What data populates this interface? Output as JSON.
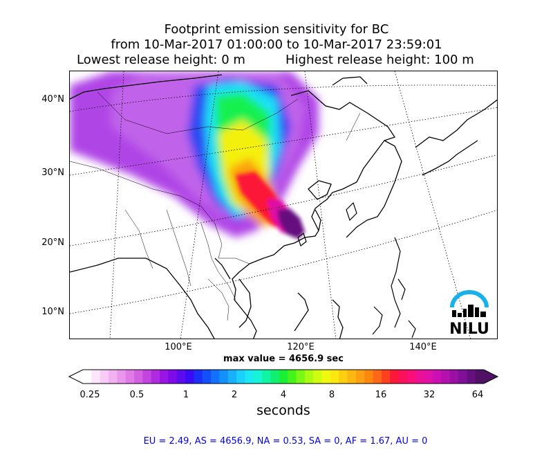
{
  "title": {
    "line1": "Footprint emission sensitivity for BC",
    "line2": "from 10-Mar-2017 01:00:00 to 10-Mar-2017 23:59:01",
    "lowest": "Lowest release height: 0 m",
    "highest": "Highest release height: 100 m"
  },
  "lat_labels": [
    "40°N",
    "30°N",
    "20°N",
    "10°N"
  ],
  "lon_labels": [
    "100°E",
    "120°E",
    "140°E"
  ],
  "max_value": "max value = 4656.9 sec",
  "colorbar": {
    "ticks": [
      "0.25",
      "0.5",
      "1",
      "2",
      "4",
      "8",
      "16",
      "32",
      "64"
    ],
    "units": "seconds",
    "colors": [
      "#ffffff",
      "#fde6fc",
      "#f9ccf7",
      "#f2b2f2",
      "#ea96ec",
      "#e07ae6",
      "#d35fe2",
      "#c444e0",
      "#b02ae0",
      "#9a14e4",
      "#7f0aea",
      "#5c0af0",
      "#3a0cf4",
      "#1a30f6",
      "#1250fa",
      "#1270fa",
      "#1490fc",
      "#18b0fc",
      "#1cd0fc",
      "#1ce8f4",
      "#16f4d4",
      "#10f4a4",
      "#10f070",
      "#18f038",
      "#44f418",
      "#78f814",
      "#a8fc10",
      "#d0fc10",
      "#f0f810",
      "#fce810",
      "#fcd010",
      "#fcb810",
      "#fca010",
      "#fc8810",
      "#fc6818",
      "#fc4020",
      "#fc1838",
      "#fc105c",
      "#f81078",
      "#ec1094",
      "#e010a8",
      "#cc10b4",
      "#b410b0",
      "#9a10a4",
      "#801098",
      "#661080",
      "#501064"
    ]
  },
  "regions": "EU = 2.49,  AS = 4656.9,  NA = 0.53,  SA = 0,  AF = 1.67,  AU = 0",
  "logo": {
    "text": "NILU",
    "arc_color": "#1ab0e8"
  }
}
